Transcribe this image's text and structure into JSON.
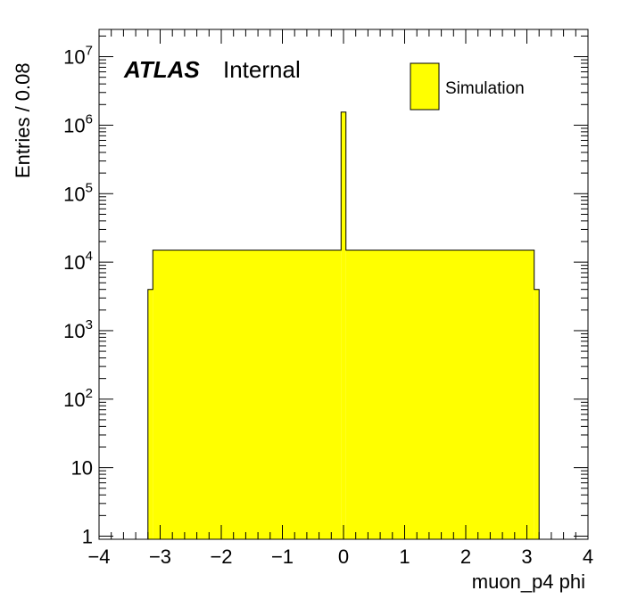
{
  "chart_data": {
    "type": "bar",
    "title": "",
    "xlabel": "muon_p4 phi",
    "ylabel": "Entries / 0.08",
    "xlim": [
      -4,
      4
    ],
    "ylim": [
      0.9,
      25000000
    ],
    "log_y": true,
    "grid": false,
    "legend_position": "top-right",
    "fill_color": "#ffff00",
    "line_color": "#000000",
    "experiment_label": "ATLAS",
    "status_label": "Internal",
    "x_ticks": [
      -4,
      -3,
      -2,
      -1,
      0,
      1,
      2,
      3,
      4
    ],
    "x_tick_labels": [
      "−4",
      "−3",
      "−2",
      "−1",
      "0",
      "1",
      "2",
      "3",
      "4"
    ],
    "y_ticks": [
      {
        "value": 1,
        "base": "1",
        "exp": ""
      },
      {
        "value": 10,
        "base": "10",
        "exp": ""
      },
      {
        "value": 100,
        "base": "10",
        "exp": "2"
      },
      {
        "value": 1000,
        "base": "10",
        "exp": "3"
      },
      {
        "value": 10000,
        "base": "10",
        "exp": "4"
      },
      {
        "value": 100000,
        "base": "10",
        "exp": "5"
      },
      {
        "value": 1000000,
        "base": "10",
        "exp": "6"
      },
      {
        "value": 10000000,
        "base": "10",
        "exp": "7"
      }
    ],
    "series": [
      {
        "name": "Simulation",
        "bins": [
          {
            "x0": -3.2,
            "x1": -3.12,
            "y": 4000
          },
          {
            "x0": -3.12,
            "x1": -0.04,
            "y": 15000
          },
          {
            "x0": -0.04,
            "x1": 0.04,
            "y": 1550000
          },
          {
            "x0": 0.04,
            "x1": 3.12,
            "y": 15000
          },
          {
            "x0": 3.12,
            "x1": 3.2,
            "y": 4000
          }
        ]
      }
    ]
  }
}
